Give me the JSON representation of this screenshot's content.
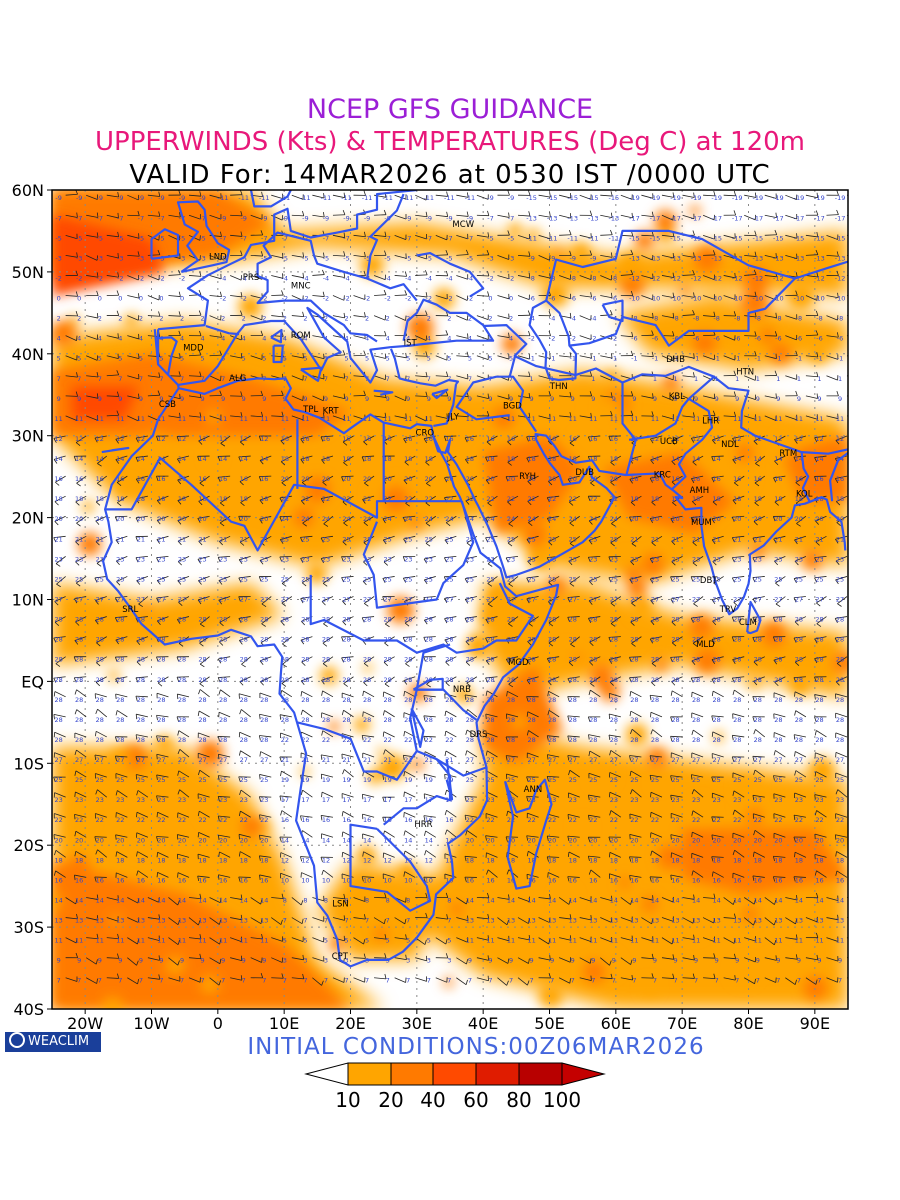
{
  "titles": {
    "line1": "NCEP GFS GUIDANCE",
    "line2": "UPPERWINDS (Kts) & TEMPERATURES (Deg C) at 120m",
    "line3": "VALID For: 14MAR2026 at 0530 IST /0000 UTC"
  },
  "initial_conditions": "INITIAL CONDITIONS:00Z06MAR2026",
  "logo": {
    "text": "WEACLIM",
    "icon": "globe-circle-icon"
  },
  "axes": {
    "lat_labels": [
      "60N",
      "50N",
      "40N",
      "30N",
      "20N",
      "10N",
      "EQ",
      "10S",
      "20S",
      "30S",
      "40S"
    ],
    "lon_labels": [
      "20W",
      "10W",
      "0",
      "10E",
      "20E",
      "30E",
      "40E",
      "50E",
      "60E",
      "70E",
      "80E",
      "90E"
    ]
  },
  "colorbar": {
    "levels": [
      "10",
      "20",
      "40",
      "60",
      "80",
      "100"
    ],
    "colors": [
      "#ffffff",
      "#ffa500",
      "#ff7a00",
      "#ff4a00",
      "#e01c00",
      "#b80000",
      "#c40000"
    ]
  },
  "colors": {
    "wind_shade_1": "#ffa500",
    "wind_shade_2": "#ff7a00",
    "wind_shade_3": "#ff4a00",
    "wind_shade_4": "#e01c00",
    "coastline": "#3355ee",
    "temp_labels": "#3344cc"
  },
  "stations": [
    {
      "code": "MCW",
      "lon": 37,
      "lat": 55.5
    },
    {
      "code": "LND",
      "lon": 0,
      "lat": 51.5
    },
    {
      "code": "PRS",
      "lon": 5,
      "lat": 49
    },
    {
      "code": "MNC",
      "lon": 12.5,
      "lat": 48
    },
    {
      "code": "ROM",
      "lon": 12.5,
      "lat": 41.9
    },
    {
      "code": "MDD",
      "lon": -3.7,
      "lat": 40.4
    },
    {
      "code": "IST",
      "lon": 29,
      "lat": 41
    },
    {
      "code": "ALG",
      "lon": 3,
      "lat": 36.7
    },
    {
      "code": "CSB",
      "lon": -7.6,
      "lat": 33.5
    },
    {
      "code": "TPL",
      "lon": 14,
      "lat": 32.9
    },
    {
      "code": "KRT",
      "lon": 17,
      "lat": 32.7
    },
    {
      "code": "CRO",
      "lon": 31.2,
      "lat": 30
    },
    {
      "code": "JLY",
      "lon": 35.5,
      "lat": 32
    },
    {
      "code": "BGD",
      "lon": 44.4,
      "lat": 33.3
    },
    {
      "code": "THN",
      "lon": 51.4,
      "lat": 35.7
    },
    {
      "code": "DHB",
      "lon": 69,
      "lat": 39
    },
    {
      "code": "HTN",
      "lon": 79.5,
      "lat": 37.5
    },
    {
      "code": "KBL",
      "lon": 69.2,
      "lat": 34.5
    },
    {
      "code": "LHR",
      "lon": 74.3,
      "lat": 31.5
    },
    {
      "code": "NDL",
      "lon": 77.2,
      "lat": 28.6
    },
    {
      "code": "UCB",
      "lon": 68,
      "lat": 29
    },
    {
      "code": "RTM",
      "lon": 86,
      "lat": 27.5
    },
    {
      "code": "RYH",
      "lon": 46.7,
      "lat": 24.7
    },
    {
      "code": "DUB",
      "lon": 55.3,
      "lat": 25.2
    },
    {
      "code": "KRC",
      "lon": 67,
      "lat": 24.9
    },
    {
      "code": "AMH",
      "lon": 72.6,
      "lat": 23
    },
    {
      "code": "KOL",
      "lon": 88.4,
      "lat": 22.6
    },
    {
      "code": "MUM",
      "lon": 72.9,
      "lat": 19.1
    },
    {
      "code": "DBT",
      "lon": 74,
      "lat": 12
    },
    {
      "code": "TRV",
      "lon": 76.9,
      "lat": 8.5
    },
    {
      "code": "CLM",
      "lon": 79.9,
      "lat": 6.9
    },
    {
      "code": "SRL",
      "lon": -13.2,
      "lat": 8.5
    },
    {
      "code": "MLD",
      "lon": 73.5,
      "lat": 4.2
    },
    {
      "code": "MGD",
      "lon": 45.3,
      "lat": 2.0
    },
    {
      "code": "NRB",
      "lon": 36.8,
      "lat": -1.3
    },
    {
      "code": "DRS",
      "lon": 39.3,
      "lat": -6.8
    },
    {
      "code": "ANN",
      "lon": 47.5,
      "lat": -13.5
    },
    {
      "code": "HRR",
      "lon": 31,
      "lat": -17.8
    },
    {
      "code": "LSN",
      "lon": 18.5,
      "lat": -27.5
    },
    {
      "code": "CPT",
      "lon": 18.4,
      "lat": -33.9
    }
  ]
}
